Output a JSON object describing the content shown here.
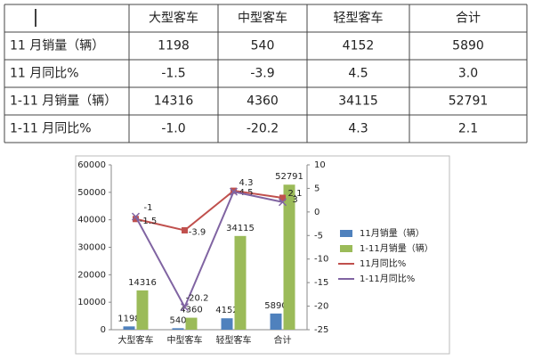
{
  "table": {
    "columns": [
      "大型客车",
      "中型客车",
      "轻型客车",
      "合计"
    ],
    "rows": [
      {
        "label": "11 月销量（辆）",
        "cells": [
          "1198",
          "540",
          "4152",
          "5890"
        ]
      },
      {
        "label": "11 月同比%",
        "cells": [
          "-1.5",
          "-3.9",
          "4.5",
          "3.0"
        ]
      },
      {
        "label": "1-11 月销量（辆）",
        "cells": [
          "14316",
          "4360",
          "34115",
          "52791"
        ]
      },
      {
        "label": "1-11 月同比%",
        "cells": [
          "-1.0",
          "-20.2",
          "4.3",
          "2.1"
        ]
      }
    ]
  },
  "chart_data": {
    "type": "bar",
    "categories": [
      "大型客车",
      "中型客车",
      "轻型客车",
      "合计"
    ],
    "series": [
      {
        "name": "11月销量（辆）",
        "color": "#4f81bd",
        "type": "bar",
        "values": [
          1198,
          540,
          4152,
          5890
        ]
      },
      {
        "name": "1-11月销量（辆）",
        "color": "#9bbb59",
        "type": "bar",
        "values": [
          14316,
          4360,
          34115,
          52791
        ]
      },
      {
        "name": "11月同比%",
        "color": "#c0504d",
        "type": "line",
        "axis": "y2",
        "values": [
          -1.5,
          -3.9,
          4.5,
          3
        ]
      },
      {
        "name": "1-11月同比%",
        "color": "#8064a2",
        "type": "line",
        "axis": "y2",
        "values": [
          -1,
          -20.2,
          4.3,
          2.1
        ]
      }
    ],
    "ylim": [
      0,
      60000
    ],
    "yticks": [
      0,
      10000,
      20000,
      30000,
      40000,
      50000,
      60000
    ],
    "y2lim": [
      -25,
      10
    ],
    "y2ticks": [
      -25,
      -20,
      -15,
      -10,
      -5,
      0,
      5,
      10
    ],
    "legend": "right"
  }
}
